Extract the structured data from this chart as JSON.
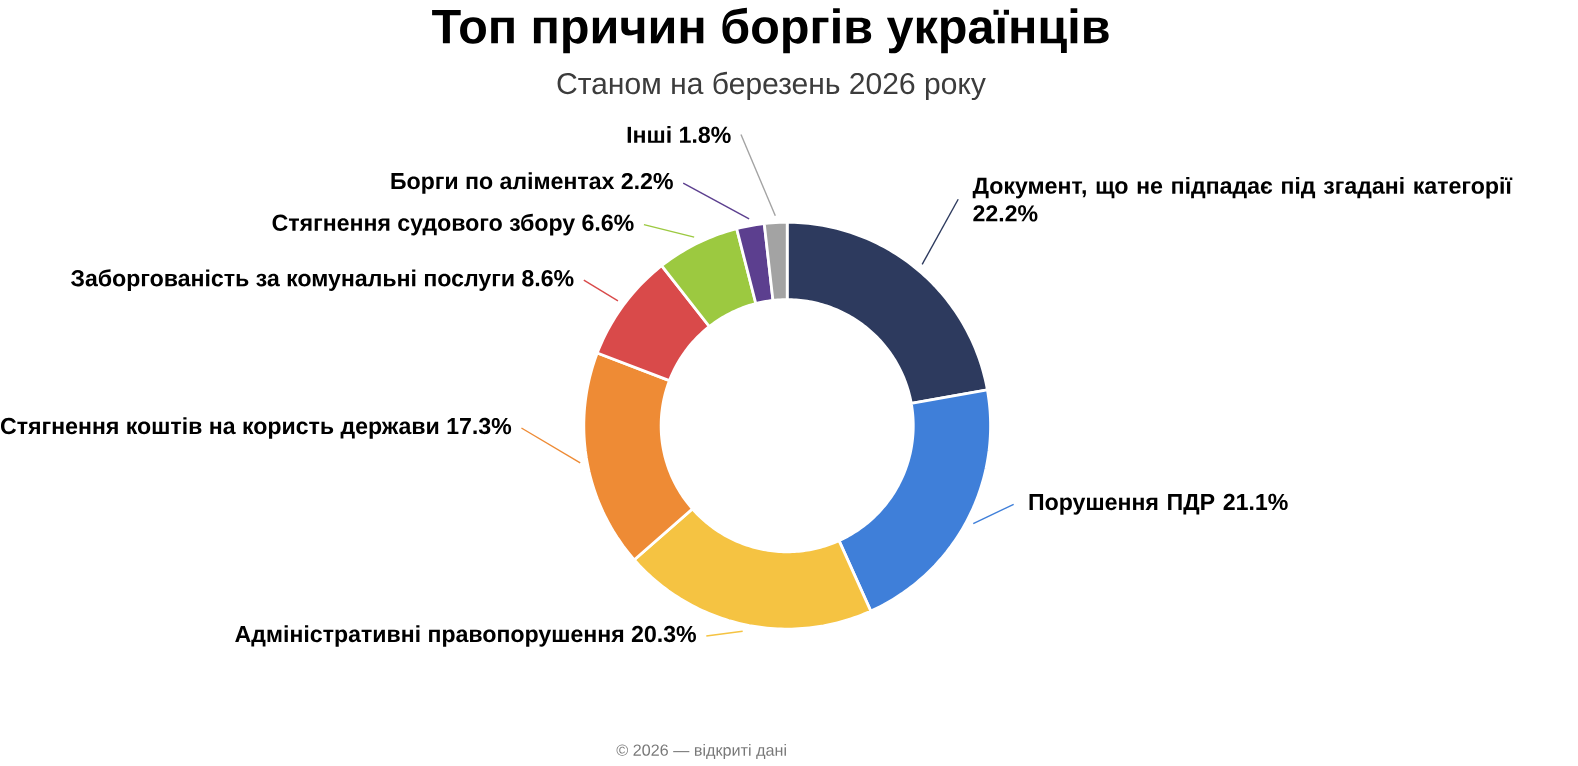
{
  "chart_data": {
    "type": "donut",
    "title": "Топ причин боргів українців",
    "subtitle": "Станом на березень 2026 року",
    "categories": [
      "Документ, що не підпадає під згадані категорії",
      "Порушення ПДР",
      "Адміністративні правопорушення",
      "Стягнення коштів на користь держави",
      "Заборгованість за комунальні послуги",
      "Стягнення судового збору",
      "Борги по аліментах",
      "Інші"
    ],
    "values": [
      22.2,
      21.1,
      20.3,
      17.3,
      8.6,
      6.6,
      2.2,
      1.8
    ],
    "value_labels": [
      "22.2%",
      "21.1%",
      "20.3%",
      "17.3%",
      "8.6%",
      "6.6%",
      "2.2%",
      "1.8%"
    ],
    "colors": [
      "#2d3a5e",
      "#3f7fd9",
      "#f5c342",
      "#ee8b35",
      "#d94a4a",
      "#9cc940",
      "#5c3f8f",
      "#a3a3a3"
    ],
    "annotations": [
      "© 2026 — відкриті дані"
    ]
  }
}
